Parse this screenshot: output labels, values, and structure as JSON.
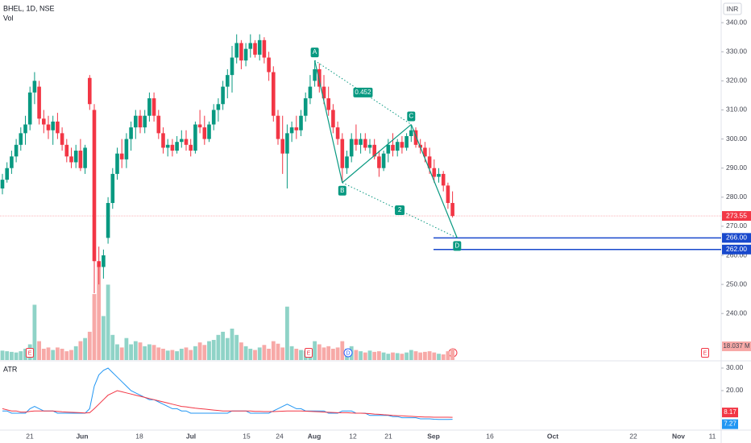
{
  "header": {
    "symbol": "BHEL, 1D, NSE",
    "volume_label": "Vol",
    "currency": "INR"
  },
  "chart_data": {
    "type": "candlestick",
    "colors": {
      "up": "#089981",
      "down": "#f23645"
    },
    "ylim": [
      224,
      347.8
    ],
    "yticks": [
      {
        "value": 240,
        "label": "240.00"
      },
      {
        "value": 250,
        "label": "250.00"
      },
      {
        "value": 260,
        "label": "260.00"
      },
      {
        "value": 270,
        "label": "270.00"
      },
      {
        "value": 280,
        "label": "280.00"
      },
      {
        "value": 290,
        "label": "290.00"
      },
      {
        "value": 300,
        "label": "300.00"
      },
      {
        "value": 310,
        "label": "310.00"
      },
      {
        "value": 320,
        "label": "320.00"
      },
      {
        "value": 330,
        "label": "330.00"
      },
      {
        "value": 340,
        "label": "340.00"
      }
    ],
    "xticks": [
      "21",
      "Jun",
      "18",
      "Jul",
      "15",
      "24",
      "Aug",
      "12",
      "21",
      "Sep",
      "16",
      "Oct",
      "22",
      "Nov",
      "11"
    ],
    "ohlc": [
      [
        283,
        288,
        281,
        286
      ],
      [
        286,
        292,
        285,
        290
      ],
      [
        290,
        296,
        288,
        294
      ],
      [
        294,
        300,
        292,
        298
      ],
      [
        298,
        304,
        296,
        302
      ],
      [
        302,
        308,
        298,
        305
      ],
      [
        305,
        318,
        303,
        316
      ],
      [
        316,
        323,
        312,
        320
      ],
      [
        318,
        320,
        305,
        307
      ],
      [
        307,
        310,
        302,
        305
      ],
      [
        305,
        308,
        300,
        303
      ],
      [
        303,
        308,
        298,
        306
      ],
      [
        306,
        309,
        300,
        302
      ],
      [
        302,
        304,
        296,
        298
      ],
      [
        298,
        300,
        292,
        294
      ],
      [
        294,
        297,
        290,
        292
      ],
      [
        292,
        298,
        290,
        296
      ],
      [
        296,
        300,
        289,
        290
      ],
      [
        290,
        298,
        288,
        297
      ],
      [
        321,
        322,
        310,
        312
      ],
      [
        310,
        312,
        247,
        258
      ],
      [
        258,
        263,
        250,
        256
      ],
      [
        256,
        262,
        252,
        260
      ],
      [
        266,
        280,
        264,
        278
      ],
      [
        278,
        290,
        276,
        288
      ],
      [
        288,
        297,
        286,
        295
      ],
      [
        295,
        300,
        290,
        293
      ],
      [
        293,
        302,
        290,
        300
      ],
      [
        300,
        306,
        296,
        304
      ],
      [
        304,
        310,
        300,
        308
      ],
      [
        308,
        310,
        302,
        304
      ],
      [
        304,
        310,
        302,
        308
      ],
      [
        308,
        316,
        306,
        314
      ],
      [
        314,
        316,
        306,
        308
      ],
      [
        308,
        310,
        300,
        302
      ],
      [
        302,
        304,
        295,
        297
      ],
      [
        297,
        300,
        294,
        298
      ],
      [
        298,
        300,
        294,
        296
      ],
      [
        296,
        301,
        295,
        299
      ],
      [
        299,
        303,
        297,
        300
      ],
      [
        300,
        303,
        296,
        298
      ],
      [
        298,
        300,
        294,
        296
      ],
      [
        296,
        306,
        295,
        305
      ],
      [
        305,
        310,
        302,
        304
      ],
      [
        304,
        308,
        298,
        300
      ],
      [
        300,
        306,
        299,
        305
      ],
      [
        305,
        312,
        303,
        310
      ],
      [
        310,
        314,
        306,
        312
      ],
      [
        312,
        320,
        310,
        318
      ],
      [
        318,
        324,
        314,
        322
      ],
      [
        322,
        332,
        316,
        328
      ],
      [
        328,
        336,
        326,
        333
      ],
      [
        333,
        334,
        324,
        327
      ],
      [
        327,
        333,
        325,
        331
      ],
      [
        331,
        336,
        328,
        333
      ],
      [
        333,
        334,
        328,
        329
      ],
      [
        329,
        336,
        327,
        334
      ],
      [
        334,
        335,
        326,
        328
      ],
      [
        328,
        330,
        320,
        323
      ],
      [
        323,
        325,
        306,
        308
      ],
      [
        308,
        310,
        298,
        300
      ],
      [
        300,
        308,
        288,
        295
      ],
      [
        295,
        305,
        283,
        302
      ],
      [
        302,
        306,
        299,
        304
      ],
      [
        304,
        308,
        300,
        303
      ],
      [
        303,
        310,
        301,
        308
      ],
      [
        308,
        316,
        306,
        314
      ],
      [
        314,
        322,
        312,
        318
      ],
      [
        320,
        327,
        318,
        324
      ],
      [
        324,
        326,
        316,
        318
      ],
      [
        318,
        322,
        312,
        314
      ],
      [
        314,
        318,
        308,
        310
      ],
      [
        310,
        312,
        302,
        304
      ],
      [
        304,
        306,
        298,
        300
      ],
      [
        300,
        302,
        285,
        290
      ],
      [
        290,
        296,
        288,
        294
      ],
      [
        294,
        302,
        292,
        300
      ],
      [
        300,
        305,
        296,
        298
      ],
      [
        298,
        302,
        295,
        300
      ],
      [
        300,
        302,
        296,
        297
      ],
      [
        297,
        300,
        295,
        298
      ],
      [
        298,
        300,
        293,
        294
      ],
      [
        294,
        296,
        287,
        290
      ],
      [
        290,
        296,
        289,
        295
      ],
      [
        295,
        300,
        292,
        298
      ],
      [
        298,
        302,
        294,
        296
      ],
      [
        296,
        300,
        294,
        299
      ],
      [
        299,
        301,
        295,
        297
      ],
      [
        297,
        302,
        296,
        301
      ],
      [
        301,
        305,
        299,
        303
      ],
      [
        303,
        304,
        297,
        298
      ],
      [
        298,
        300,
        295,
        297
      ],
      [
        297,
        299,
        292,
        294
      ],
      [
        294,
        297,
        288,
        290
      ],
      [
        290,
        293,
        285,
        287
      ],
      [
        287,
        290,
        285,
        288
      ],
      [
        288,
        289,
        282,
        284
      ],
      [
        284,
        285,
        276,
        278
      ],
      [
        278,
        282,
        273,
        273.55
      ]
    ],
    "last_price": {
      "value": 273.55,
      "label": "273.55"
    },
    "levels": [
      {
        "value": 266,
        "label": "266.00",
        "color": "#1848cc"
      },
      {
        "value": 262,
        "label": "262.00",
        "color": "#1848cc"
      }
    ],
    "volume": {
      "values": [
        15,
        14,
        13,
        12,
        14,
        18,
        25,
        88,
        30,
        18,
        20,
        16,
        20,
        18,
        14,
        16,
        22,
        30,
        35,
        45,
        105,
        150,
        70,
        120,
        40,
        25,
        20,
        35,
        25,
        30,
        28,
        22,
        25,
        24,
        20,
        18,
        15,
        16,
        14,
        18,
        20,
        16,
        22,
        28,
        24,
        30,
        32,
        40,
        45,
        35,
        50,
        40,
        28,
        22,
        18,
        16,
        20,
        24,
        18,
        30,
        26,
        20,
        85,
        22,
        18,
        16,
        15,
        14,
        30,
        25,
        20,
        22,
        18,
        20,
        30,
        18,
        22,
        16,
        14,
        12,
        15,
        13,
        14,
        12,
        10,
        12,
        11,
        10,
        12,
        16,
        14,
        12,
        13,
        14,
        12,
        10,
        9,
        14,
        18.037
      ],
      "last_label": "18.037 M",
      "up_color": "#8fd3c7",
      "down_color": "#f7a9a7"
    },
    "pattern": {
      "color": "#089981",
      "points": [
        {
          "label": "A",
          "x": 68,
          "value": 327
        },
        {
          "label": "B",
          "x": 74,
          "value": 285
        },
        {
          "label": "C",
          "x": 89,
          "value": 305
        },
        {
          "label": "D",
          "x": 99,
          "value": 266
        }
      ],
      "ratios": [
        "0.452",
        "2"
      ]
    },
    "events": [
      "E",
      "E",
      "D",
      "E"
    ],
    "atr": {
      "title": "ATR",
      "ylim": [
        2.14,
        33.2
      ],
      "yticks": [
        {
          "value": 20,
          "label": "20.00"
        },
        {
          "value": 30,
          "label": "30.00"
        }
      ],
      "series": [
        {
          "color": "#2196f3",
          "last_label": "7.27",
          "values": [
            11,
            11,
            10,
            10,
            10,
            10,
            12,
            13,
            12,
            11,
            11,
            11,
            10,
            10,
            10,
            10,
            10,
            10,
            10,
            12,
            22,
            27,
            29,
            30,
            28,
            26,
            24,
            22,
            20,
            19,
            18,
            17,
            16,
            16,
            15,
            14,
            13,
            12,
            12,
            11,
            11,
            10,
            10,
            10,
            10,
            10,
            10,
            10,
            10,
            10,
            11,
            11,
            11,
            11,
            10,
            10,
            10,
            10,
            10,
            11,
            12,
            13,
            14,
            13,
            12,
            12,
            11,
            11,
            11,
            11,
            11,
            10,
            10,
            10,
            11,
            11,
            11,
            10,
            10,
            10,
            9,
            9,
            9,
            9,
            9,
            8.5,
            8.5,
            8,
            8,
            8,
            8,
            7.5,
            7.5,
            7.5,
            7.3,
            7.2,
            7.2,
            7.2,
            7.27
          ]
        },
        {
          "color": "#f23645",
          "last_label": "8.17",
          "values": [
            12,
            11.5,
            11,
            11,
            10.5,
            10.5,
            10.8,
            11,
            11,
            11,
            11,
            11,
            10.8,
            10.6,
            10.5,
            10.4,
            10.3,
            10.2,
            10.1,
            10.2,
            12,
            14,
            16,
            18,
            19,
            20,
            19.5,
            19,
            18.5,
            18,
            17.5,
            17,
            16.5,
            16,
            15.5,
            15,
            14.5,
            14,
            13.5,
            13,
            12.8,
            12.5,
            12.2,
            12,
            11.8,
            11.6,
            11.4,
            11.2,
            11,
            11,
            11,
            11,
            11,
            11,
            11,
            10.8,
            10.8,
            10.7,
            10.7,
            10.7,
            10.8,
            10.9,
            11,
            11,
            11,
            11,
            10.9,
            10.8,
            10.7,
            10.6,
            10.5,
            10.4,
            10.3,
            10.2,
            10.2,
            10.2,
            10.1,
            10,
            10,
            9.9,
            9.8,
            9.6,
            9.5,
            9.3,
            9.2,
            9,
            8.9,
            8.8,
            8.7,
            8.6,
            8.5,
            8.4,
            8.3,
            8.3,
            8.2,
            8.2,
            8.2,
            8.2,
            8.17
          ]
        }
      ]
    }
  }
}
